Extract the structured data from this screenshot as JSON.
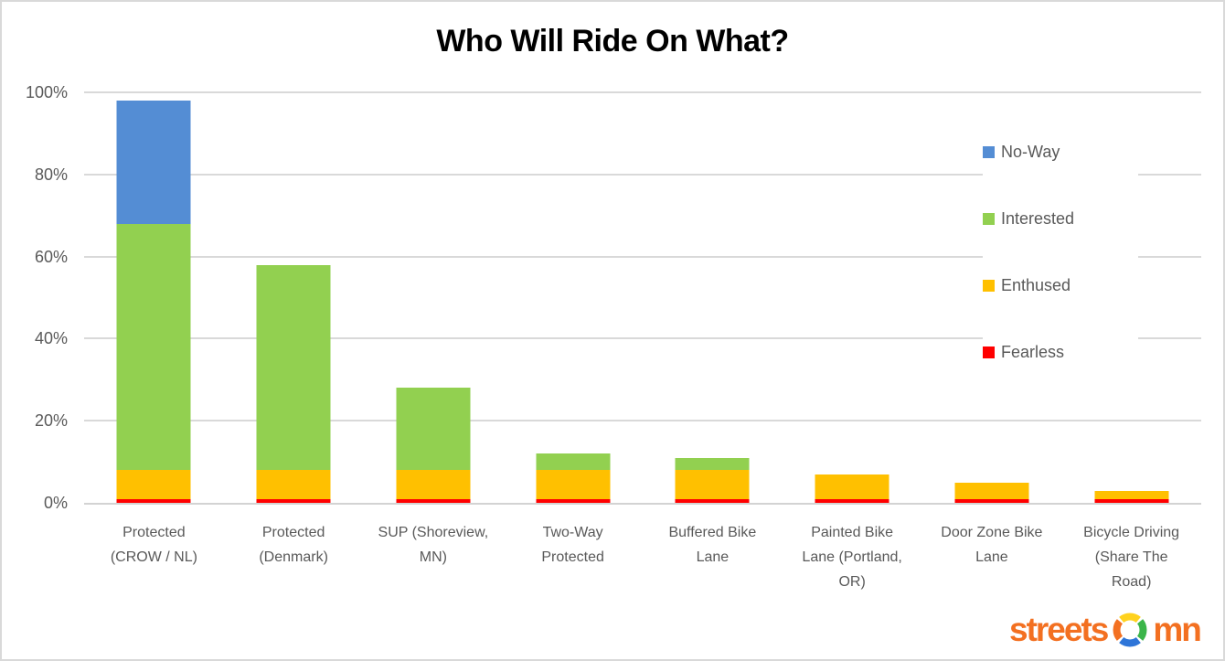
{
  "chart_data": {
    "type": "bar",
    "stacked": true,
    "title": "Who Will Ride On What?",
    "xlabel": "",
    "ylabel": "",
    "ylim": [
      0,
      100
    ],
    "grid": true,
    "legend_position": "right-overlay",
    "categories": [
      "Protected (CROW / NL)",
      "Protected (Denmark)",
      "SUP (Shoreview, MN)",
      "Two-Way Protected",
      "Buffered Bike Lane",
      "Painted Bike Lane (Portland, OR)",
      "Door Zone Bike Lane",
      "Bicycle Driving (Share The Road)"
    ],
    "category_label_lines": [
      [
        "Protected",
        "(CROW / NL)"
      ],
      [
        "Protected",
        "(Denmark)"
      ],
      [
        "SUP (Shoreview,",
        "MN)"
      ],
      [
        "Two-Way",
        "Protected"
      ],
      [
        "Buffered Bike",
        "Lane"
      ],
      [
        "Painted Bike",
        "Lane (Portland,",
        "OR)"
      ],
      [
        "Door Zone Bike",
        "Lane"
      ],
      [
        "Bicycle Driving",
        "(Share The",
        "Road)"
      ]
    ],
    "series": [
      {
        "name": "Fearless",
        "color": "#FF0000",
        "values": [
          1,
          1,
          1,
          1,
          1,
          1,
          1,
          1
        ]
      },
      {
        "name": "Enthused",
        "color": "#FFC000",
        "values": [
          7,
          7,
          7,
          7,
          7,
          6,
          4,
          2
        ]
      },
      {
        "name": "Interested",
        "color": "#92D050",
        "values": [
          60,
          50,
          20,
          4,
          3,
          0,
          0,
          0
        ]
      },
      {
        "name": "No-Way",
        "color": "#548DD4",
        "values": [
          30,
          0,
          0,
          0,
          0,
          0,
          0,
          0
        ]
      }
    ],
    "stack_totals_pct": [
      98,
      58,
      28,
      12,
      11,
      7,
      5,
      3
    ],
    "yticks": [
      {
        "value": 0,
        "label": "0%"
      },
      {
        "value": 20,
        "label": "20%"
      },
      {
        "value": 40,
        "label": "40%"
      },
      {
        "value": 60,
        "label": "60%"
      },
      {
        "value": 80,
        "label": "80%"
      },
      {
        "value": 100,
        "label": "100%"
      }
    ]
  },
  "legend": {
    "items": [
      {
        "label": "No-Way",
        "color": "#548DD4"
      },
      {
        "label": "Interested",
        "color": "#92D050"
      },
      {
        "label": "Enthused",
        "color": "#FFC000"
      },
      {
        "label": "Fearless",
        "color": "#FF0000"
      }
    ]
  },
  "logo": {
    "text_left": "streets",
    "text_right": "mn",
    "text_color": "#F37021",
    "ring": {
      "top_color": "#FFD21E",
      "right_color": "#3BB54A",
      "bottom_color": "#2E75D8",
      "left_color": "#F37021"
    }
  },
  "colors": {
    "background": "#FFFFFF",
    "canvas_border": "#D9D9D9",
    "gridline": "#D9D9D9",
    "axis_text": "#595959",
    "title_text": "#000000"
  }
}
